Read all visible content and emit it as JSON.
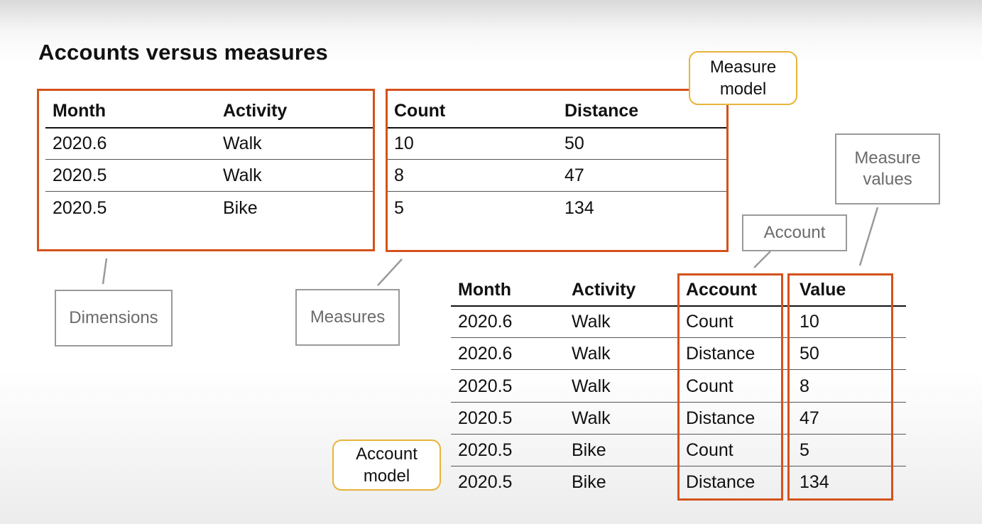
{
  "title": "Accounts versus measures",
  "dimensions_table": {
    "headers": [
      "Month",
      "Activity"
    ],
    "rows": [
      [
        "2020.6",
        "Walk"
      ],
      [
        "2020.5",
        "Walk"
      ],
      [
        "2020.5",
        "Bike"
      ]
    ]
  },
  "measures_table": {
    "headers": [
      "Count",
      "Distance"
    ],
    "rows": [
      [
        "10",
        "50"
      ],
      [
        "8",
        "47"
      ],
      [
        "5",
        "134"
      ]
    ]
  },
  "account_table": {
    "headers": [
      "Month",
      "Activity",
      "Account",
      "Value"
    ],
    "rows": [
      [
        "2020.6",
        "Walk",
        "Count",
        "10"
      ],
      [
        "2020.6",
        "Walk",
        "Distance",
        "50"
      ],
      [
        "2020.5",
        "Walk",
        "Count",
        "8"
      ],
      [
        "2020.5",
        "Walk",
        "Distance",
        "47"
      ],
      [
        "2020.5",
        "Bike",
        "Count",
        "5"
      ],
      [
        "2020.5",
        "Bike",
        "Distance",
        "134"
      ]
    ]
  },
  "labels": {
    "dimensions": "Dimensions",
    "measures": "Measures",
    "account": "Account",
    "measure_values_line1": "Measure",
    "measure_values_line2": "values",
    "measure_model_line1": "Measure",
    "measure_model_line2": "model",
    "account_model_line1": "Account",
    "account_model_line2": "model"
  },
  "colors": {
    "highlight_border": "#d4521c",
    "label_border": "#9a9a9a",
    "model_border": "#e8b43a"
  }
}
